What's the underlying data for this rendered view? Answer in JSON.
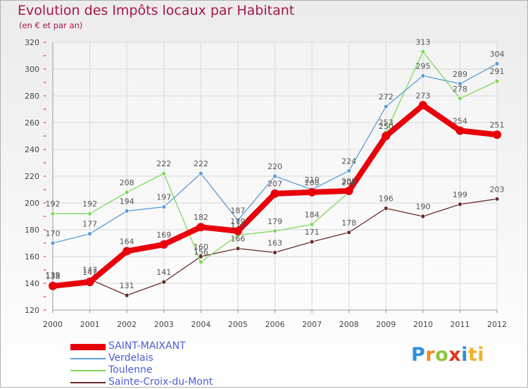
{
  "header": {
    "title": "Evolution des Impôts locaux par Habitant",
    "subtitle": "(en € et par an)"
  },
  "logo": {
    "letters": [
      "P",
      "r",
      "o",
      "x",
      "i",
      "ti"
    ]
  },
  "chart_data": {
    "type": "line",
    "title": "Evolution des Impôts locaux par Habitant",
    "subtitle": "(en € et par an)",
    "xlabel": "",
    "ylabel": "",
    "x": [
      "2000",
      "2001",
      "2002",
      "2003",
      "2004",
      "2005",
      "2006",
      "2007",
      "2008",
      "2009",
      "2010",
      "2011",
      "2012"
    ],
    "ylim": [
      120,
      320
    ],
    "yticks": [
      120,
      140,
      160,
      180,
      200,
      220,
      240,
      260,
      280,
      300,
      320
    ],
    "grid": true,
    "legend_position": "bottom-left",
    "series": [
      {
        "name": "SAINT-MAIXANT",
        "color": "#e8000b",
        "values": [
          138,
          141,
          164,
          169,
          182,
          179,
          207,
          208,
          209,
          250,
          273,
          254,
          251
        ],
        "labels": [
          "138",
          "141",
          "164",
          "169",
          "182",
          "179",
          "207",
          "208",
          "209",
          "250",
          "273",
          "254",
          "251"
        ]
      },
      {
        "name": "Verdelais",
        "color": "#5b9bd5",
        "values": [
          170,
          177,
          194,
          197,
          222,
          187,
          220,
          210,
          224,
          272,
          295,
          289,
          304
        ],
        "labels": [
          "170",
          "177",
          "194",
          "197",
          "222",
          "187",
          "220",
          "210",
          "224",
          "272",
          "295",
          "289",
          "304"
        ]
      },
      {
        "name": "Toulenne",
        "color": "#7ed957",
        "values": [
          192,
          192,
          208,
          222,
          156,
          176,
          179,
          184,
          208,
          253,
          313,
          278,
          291
        ],
        "labels": [
          "192",
          "192",
          "208",
          "222",
          "156",
          "176",
          "179",
          "184",
          "208",
          "253",
          "313",
          "278",
          "291"
        ]
      },
      {
        "name": "Sainte-Croix-du-Mont",
        "color": "#6b2a2a",
        "values": [
          139,
          143,
          131,
          141,
          160,
          166,
          163,
          171,
          178,
          196,
          190,
          199,
          203
        ],
        "labels": [
          "139",
          "143",
          "131",
          "141",
          "160",
          "166",
          "163",
          "171",
          "178",
          "196",
          "190",
          "199",
          "203"
        ]
      }
    ]
  }
}
